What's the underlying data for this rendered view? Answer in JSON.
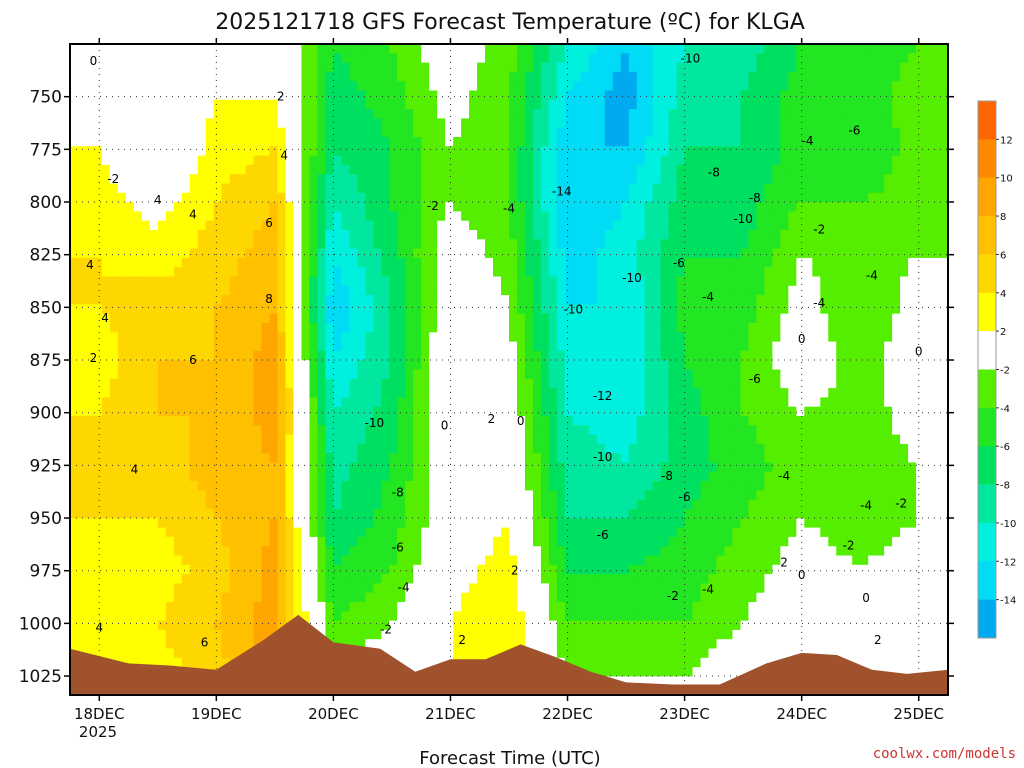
{
  "chart_data": {
    "type": "heatmap",
    "title": "2025121718 GFS Forecast Temperature (ºC) for KLGA",
    "xlabel": "Forecast Time (UTC)",
    "ylabel": "",
    "credit": "coolwx.com/models",
    "x_ticks": [
      "18DEC",
      "19DEC",
      "20DEC",
      "21DEC",
      "22DEC",
      "23DEC",
      "24DEC",
      "25DEC"
    ],
    "x_year_label": "2025",
    "y_ticks": [
      750,
      775,
      800,
      825,
      850,
      875,
      900,
      925,
      950,
      975,
      1000,
      1025
    ],
    "ylim": [
      1034,
      725
    ],
    "xlim": [
      -0.25,
      7.25
    ],
    "colorbar": {
      "ticks": [
        "12",
        "10",
        "8",
        "6",
        "4",
        "2",
        "-2",
        "-4",
        "-6",
        "-8",
        "-10",
        "-12",
        "-14"
      ],
      "bins": [
        {
          "range": [
            12,
            14
          ],
          "color": "#ff6600"
        },
        {
          "range": [
            10,
            12
          ],
          "color": "#ff8800"
        },
        {
          "range": [
            8,
            10
          ],
          "color": "#ffa500"
        },
        {
          "range": [
            6,
            8
          ],
          "color": "#ffc000"
        },
        {
          "range": [
            4,
            6
          ],
          "color": "#ffd700"
        },
        {
          "range": [
            2,
            4
          ],
          "color": "#ffff00"
        },
        {
          "range": [
            -2,
            2
          ],
          "color": "#ffffff"
        },
        {
          "range": [
            -4,
            -2
          ],
          "color": "#55ee00"
        },
        {
          "range": [
            -6,
            -4
          ],
          "color": "#22e622"
        },
        {
          "range": [
            -8,
            -6
          ],
          "color": "#00e060"
        },
        {
          "range": [
            -10,
            -8
          ],
          "color": "#00e8a0"
        },
        {
          "range": [
            -12,
            -10
          ],
          "color": "#00f0e0"
        },
        {
          "range": [
            -14,
            -12
          ],
          "color": "#00dcf5"
        },
        {
          "range": [
            -16,
            -14
          ],
          "color": "#00aaf0"
        }
      ]
    },
    "series": [
      {
        "name": "Temperature profile 18DEC 00Z",
        "x": 0.0,
        "levels": [
          725,
          750,
          775,
          800,
          825,
          850,
          875,
          900,
          925,
          950,
          975,
          1000,
          1025
        ],
        "values": [
          0,
          1,
          2,
          3,
          4,
          4,
          3,
          4,
          5,
          4,
          3,
          4,
          3
        ]
      },
      {
        "name": "Temperature profile 18DEC 12Z",
        "x": 0.5,
        "levels": [
          725,
          750,
          775,
          800,
          825,
          850,
          875,
          900,
          925,
          950,
          975,
          1000,
          1025
        ],
        "values": [
          -1,
          0,
          -2,
          1,
          3,
          5,
          6,
          6,
          5,
          4,
          3,
          4,
          3
        ]
      },
      {
        "name": "Temperature profile 19DEC 00Z",
        "x": 1.0,
        "levels": [
          725,
          750,
          775,
          800,
          825,
          850,
          875,
          900,
          925,
          950,
          975,
          1000,
          1025
        ],
        "values": [
          0,
          2,
          3,
          4,
          5,
          6,
          6,
          6,
          7,
          6,
          5,
          6,
          5
        ]
      },
      {
        "name": "Temperature profile 19DEC 12Z",
        "x": 1.5,
        "levels": [
          725,
          750,
          775,
          800,
          825,
          850,
          875,
          900,
          925,
          950,
          975,
          1000,
          1025
        ],
        "values": [
          1,
          2,
          4,
          6,
          7,
          8,
          9,
          9,
          8,
          8,
          9,
          9,
          10
        ]
      },
      {
        "name": "Temperature profile 20DEC 00Z",
        "x": 2.0,
        "levels": [
          725,
          750,
          775,
          800,
          825,
          850,
          875,
          900,
          925,
          950,
          975,
          1000,
          1025
        ],
        "values": [
          -6,
          -7,
          -8,
          -10,
          -12,
          -14,
          -12,
          -10,
          -9,
          -8,
          -6,
          -4,
          -2
        ]
      },
      {
        "name": "Temperature profile 20DEC 12Z",
        "x": 2.5,
        "levels": [
          725,
          750,
          775,
          800,
          825,
          850,
          875,
          900,
          925,
          950,
          975,
          1000,
          1025
        ],
        "values": [
          -4,
          -5,
          -6,
          -6,
          -7,
          -8,
          -8,
          -7,
          -6,
          -5,
          -4,
          -2,
          0
        ]
      },
      {
        "name": "Temperature profile 21DEC 00Z",
        "x": 3.0,
        "levels": [
          725,
          750,
          775,
          800,
          825,
          850,
          875,
          900,
          925,
          950,
          975,
          1000,
          1025
        ],
        "values": [
          0,
          -1,
          -2,
          -2,
          0,
          0,
          1,
          1,
          0,
          0,
          1,
          2,
          2
        ]
      },
      {
        "name": "Temperature profile 21DEC 12Z",
        "x": 3.5,
        "levels": [
          725,
          750,
          775,
          800,
          825,
          850,
          875,
          900,
          925,
          950,
          975,
          1000,
          1025
        ],
        "values": [
          -3,
          -4,
          -4,
          -4,
          -3,
          -2,
          -1,
          0,
          1,
          2,
          3,
          4,
          4
        ]
      },
      {
        "name": "Temperature profile 22DEC 00Z",
        "x": 4.0,
        "levels": [
          725,
          750,
          775,
          800,
          825,
          850,
          875,
          900,
          925,
          950,
          975,
          1000,
          1025
        ],
        "values": [
          -10,
          -12,
          -14,
          -14,
          -13,
          -12,
          -11,
          -10,
          -9,
          -8,
          -6,
          -4,
          -2
        ]
      },
      {
        "name": "Temperature profile 22DEC 12Z",
        "x": 4.5,
        "levels": [
          725,
          750,
          775,
          800,
          825,
          850,
          875,
          900,
          925,
          950,
          975,
          1000,
          1025
        ],
        "values": [
          -14,
          -15,
          -14,
          -12,
          -11,
          -12,
          -12,
          -11,
          -10,
          -8,
          -6,
          -4,
          -2
        ]
      },
      {
        "name": "Temperature profile 23DEC 00Z",
        "x": 5.0,
        "levels": [
          725,
          750,
          775,
          800,
          825,
          850,
          875,
          900,
          925,
          950,
          975,
          1000,
          1025
        ],
        "values": [
          -10,
          -9,
          -8,
          -7,
          -6,
          -5,
          -6,
          -7,
          -7,
          -6,
          -5,
          -4,
          -2
        ]
      },
      {
        "name": "Temperature profile 23DEC 12Z",
        "x": 5.5,
        "levels": [
          725,
          750,
          775,
          800,
          825,
          850,
          875,
          900,
          925,
          950,
          975,
          1000,
          1025
        ],
        "values": [
          -9,
          -8,
          -8,
          -7,
          -6,
          -5,
          -4,
          -4,
          -5,
          -4,
          -3,
          -2,
          0
        ]
      },
      {
        "name": "Temperature profile 24DEC 00Z",
        "x": 6.0,
        "levels": [
          725,
          750,
          775,
          800,
          825,
          850,
          875,
          900,
          925,
          950,
          975,
          1000,
          1025
        ],
        "values": [
          -6,
          -5,
          -5,
          -4,
          -2,
          -1,
          0,
          -2,
          -3,
          -2,
          -1,
          0,
          1
        ]
      },
      {
        "name": "Temperature profile 24DEC 12Z",
        "x": 6.5,
        "levels": [
          725,
          750,
          775,
          800,
          825,
          850,
          875,
          900,
          925,
          950,
          975,
          1000,
          1025
        ],
        "values": [
          -5,
          -5,
          -6,
          -4,
          -3,
          -4,
          -3,
          -3,
          -3,
          -3,
          -2,
          0,
          2
        ]
      },
      {
        "name": "Temperature profile 25DEC 00Z",
        "x": 7.0,
        "levels": [
          725,
          750,
          775,
          800,
          825,
          850,
          875,
          900,
          925,
          950,
          975,
          1000,
          1025
        ],
        "values": [
          -4,
          -3,
          -3,
          -3,
          -2,
          -1,
          0,
          -1,
          -2,
          -2,
          -1,
          0,
          1
        ]
      }
    ],
    "surface_pressure": {
      "x": [
        -0.25,
        0.25,
        0.6,
        1.0,
        1.4,
        1.7,
        2.0,
        2.4,
        2.7,
        3.0,
        3.3,
        3.6,
        3.9,
        4.2,
        4.5,
        4.9,
        5.3,
        5.7,
        6.0,
        6.3,
        6.6,
        6.9,
        7.25
      ],
      "values": [
        1012,
        1019,
        1020,
        1022,
        1008,
        996,
        1009,
        1012,
        1023,
        1017,
        1017,
        1010,
        1016,
        1023,
        1028,
        1029,
        1029,
        1019,
        1014,
        1015,
        1022,
        1024,
        1022
      ]
    },
    "annotations": [
      {
        "text": "0",
        "x": -0.05,
        "y": 733
      },
      {
        "text": "2",
        "x": 1.55,
        "y": 750
      },
      {
        "text": "-2",
        "x": 0.12,
        "y": 789
      },
      {
        "text": "4",
        "x": 0.5,
        "y": 799
      },
      {
        "text": "4",
        "x": 0.8,
        "y": 806
      },
      {
        "text": "6",
        "x": 1.45,
        "y": 810
      },
      {
        "text": "4",
        "x": 1.58,
        "y": 778
      },
      {
        "text": "8",
        "x": 1.45,
        "y": 846
      },
      {
        "text": "4",
        "x": -0.08,
        "y": 830
      },
      {
        "text": "4",
        "x": 0.05,
        "y": 855
      },
      {
        "text": "2",
        "x": -0.05,
        "y": 874
      },
      {
        "text": "6",
        "x": 0.8,
        "y": 875
      },
      {
        "text": "4",
        "x": 0.3,
        "y": 927
      },
      {
        "text": "4",
        "x": 0.0,
        "y": 1002
      },
      {
        "text": "6",
        "x": 0.9,
        "y": 1009
      },
      {
        "text": "-2",
        "x": 2.85,
        "y": 802
      },
      {
        "text": "-4",
        "x": 3.5,
        "y": 803
      },
      {
        "text": "-10",
        "x": 2.35,
        "y": 905
      },
      {
        "text": "0",
        "x": 2.95,
        "y": 906
      },
      {
        "text": "2",
        "x": 3.35,
        "y": 903
      },
      {
        "text": "0",
        "x": 3.6,
        "y": 904
      },
      {
        "text": "-8",
        "x": 2.55,
        "y": 938
      },
      {
        "text": "-6",
        "x": 2.55,
        "y": 964
      },
      {
        "text": "-4",
        "x": 2.6,
        "y": 983
      },
      {
        "text": "-2",
        "x": 2.45,
        "y": 1003
      },
      {
        "text": "2",
        "x": 3.1,
        "y": 1008
      },
      {
        "text": "2",
        "x": 3.55,
        "y": 975
      },
      {
        "text": "-14",
        "x": 3.95,
        "y": 795
      },
      {
        "text": "-10",
        "x": 4.05,
        "y": 851
      },
      {
        "text": "-12",
        "x": 4.3,
        "y": 892
      },
      {
        "text": "-10",
        "x": 4.3,
        "y": 921
      },
      {
        "text": "-6",
        "x": 4.3,
        "y": 958
      },
      {
        "text": "-10",
        "x": 5.05,
        "y": 732
      },
      {
        "text": "-8",
        "x": 5.25,
        "y": 786
      },
      {
        "text": "-8",
        "x": 5.6,
        "y": 798
      },
      {
        "text": "-10",
        "x": 5.5,
        "y": 808
      },
      {
        "text": "-6",
        "x": 4.95,
        "y": 829
      },
      {
        "text": "-10",
        "x": 4.55,
        "y": 836
      },
      {
        "text": "-4",
        "x": 5.2,
        "y": 845
      },
      {
        "text": "-6",
        "x": 5.6,
        "y": 884
      },
      {
        "text": "-8",
        "x": 4.85,
        "y": 930
      },
      {
        "text": "-6",
        "x": 5.0,
        "y": 940
      },
      {
        "text": "-4",
        "x": 5.2,
        "y": 984
      },
      {
        "text": "-2",
        "x": 4.9,
        "y": 987
      },
      {
        "text": "-4",
        "x": 6.05,
        "y": 771
      },
      {
        "text": "-6",
        "x": 6.45,
        "y": 766
      },
      {
        "text": "-2",
        "x": 6.15,
        "y": 813
      },
      {
        "text": "-4",
        "x": 6.6,
        "y": 835
      },
      {
        "text": "-4",
        "x": 6.15,
        "y": 848
      },
      {
        "text": "0",
        "x": 6.0,
        "y": 865
      },
      {
        "text": "0",
        "x": 7.0,
        "y": 871
      },
      {
        "text": "-4",
        "x": 5.85,
        "y": 930
      },
      {
        "text": "-4",
        "x": 6.55,
        "y": 944
      },
      {
        "text": "-2",
        "x": 6.85,
        "y": 943
      },
      {
        "text": "-2",
        "x": 6.4,
        "y": 963
      },
      {
        "text": "2",
        "x": 5.85,
        "y": 971
      },
      {
        "text": "0",
        "x": 6.0,
        "y": 977
      },
      {
        "text": "0",
        "x": 6.55,
        "y": 988
      },
      {
        "text": "2",
        "x": 6.65,
        "y": 1008
      }
    ]
  }
}
